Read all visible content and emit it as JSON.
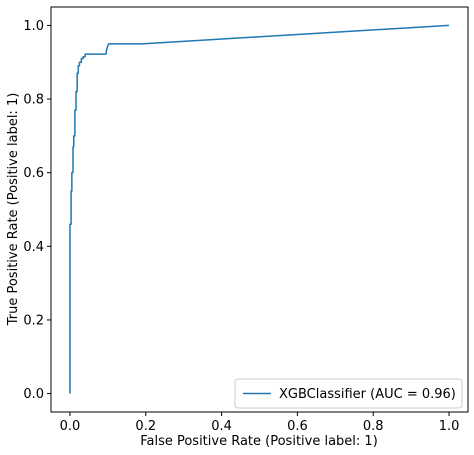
{
  "chart_data": {
    "type": "line",
    "xlabel": "False Positive Rate (Positive label: 1)",
    "ylabel": "True Positive Rate (Positive label: 1)",
    "xlim": [
      -0.05,
      1.05
    ],
    "ylim": [
      -0.05,
      1.05
    ],
    "x_ticks": [
      "0.0",
      "0.2",
      "0.4",
      "0.6",
      "0.8",
      "1.0"
    ],
    "y_ticks": [
      "0.0",
      "0.2",
      "0.4",
      "0.6",
      "0.8",
      "1.0"
    ],
    "grid": false,
    "legend_position": "lower-right",
    "series": [
      {
        "name": "XGBClassifier (AUC = 0.96)",
        "color": "#1f77b4",
        "x": [
          0.0,
          0.0,
          0.003,
          0.003,
          0.005,
          0.005,
          0.008,
          0.008,
          0.01,
          0.01,
          0.013,
          0.013,
          0.016,
          0.016,
          0.019,
          0.019,
          0.022,
          0.022,
          0.025,
          0.025,
          0.03,
          0.03,
          0.035,
          0.035,
          0.04,
          0.04,
          0.095,
          0.097,
          0.1,
          0.102,
          0.19,
          1.0
        ],
        "y": [
          0.0,
          0.46,
          0.46,
          0.55,
          0.55,
          0.6,
          0.6,
          0.67,
          0.67,
          0.7,
          0.7,
          0.77,
          0.77,
          0.82,
          0.82,
          0.87,
          0.87,
          0.89,
          0.89,
          0.9,
          0.9,
          0.91,
          0.91,
          0.915,
          0.915,
          0.922,
          0.922,
          0.935,
          0.945,
          0.95,
          0.95,
          1.0
        ]
      }
    ]
  }
}
